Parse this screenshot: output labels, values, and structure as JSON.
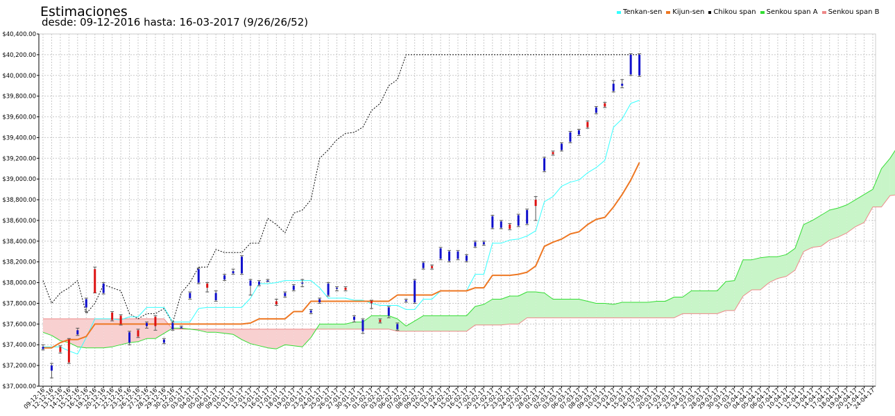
{
  "chart_data": {
    "type": "ichimoku_candlestick",
    "title": "Estimaciones",
    "subtitle": "desde: 09-12-2016 hasta: 16-03-2017 (9/26/26/52)",
    "ylim": [
      37000,
      40400
    ],
    "y_ticks": [
      37000,
      37200,
      37400,
      37600,
      37800,
      38000,
      38200,
      38400,
      38600,
      38800,
      39000,
      39200,
      39400,
      39600,
      39800,
      40000,
      40200,
      40400
    ],
    "y_tick_labels": [
      "$37,000.00",
      "$37,200.00",
      "$37,400.00",
      "$37,600.00",
      "$37,800.00",
      "$38,000.00",
      "$38,200.00",
      "$38,400.00",
      "$38,600.00",
      "$38,800.00",
      "$39,000.00",
      "$39,200.00",
      "$39,400.00",
      "$39,600.00",
      "$39,800.00",
      "$40,000.00",
      "$40,200.00",
      "$40,400.00"
    ],
    "grid": true,
    "legend_position": "top-right",
    "colors": {
      "tenkan": "#33ffff",
      "kijun": "#ee7722",
      "chikou": "#000000",
      "senkou_a": "#33dd33",
      "senkou_b": "#ee8888",
      "cloud_bull": "#c8f5c8",
      "cloud_bear": "#f8d0d0",
      "candle_up": "#1111cc",
      "candle_down": "#dd1111",
      "wick": "#555555"
    },
    "legend": [
      {
        "key": "tenkan",
        "label": "Tenkan-sen"
      },
      {
        "key": "kijun",
        "label": "Kijun-sen"
      },
      {
        "key": "chikou",
        "label": "Chikou span"
      },
      {
        "key": "senkou_a",
        "label": "Senkou span A"
      },
      {
        "key": "senkou_b",
        "label": "Senkou span B"
      }
    ],
    "dates": [
      "09-12-16",
      "12-12-16",
      "13-12-16",
      "14-12-16",
      "15-12-16",
      "16-12-16",
      "19-12-16",
      "20-12-16",
      "21-12-16",
      "22-12-16",
      "23-12-16",
      "26-12-16",
      "27-12-16",
      "28-12-16",
      "29-12-16",
      "30-12-16",
      "02-01-17",
      "03-01-17",
      "04-01-17",
      "05-01-17",
      "06-01-17",
      "09-01-17",
      "10-01-17",
      "11-01-17",
      "12-01-17",
      "13-01-17",
      "16-01-17",
      "17-01-17",
      "18-01-17",
      "19-01-17",
      "20-01-17",
      "23-01-17",
      "24-01-17",
      "25-01-17",
      "26-01-17",
      "27-01-17",
      "30-01-17",
      "31-01-17",
      "01-02-17",
      "02-02-17",
      "03-02-17",
      "06-02-17",
      "07-02-17",
      "08-02-17",
      "09-02-17",
      "10-02-17",
      "13-02-17",
      "14-02-17",
      "15-02-17",
      "16-02-17",
      "17-02-17",
      "20-02-17",
      "21-02-17",
      "22-02-17",
      "23-02-17",
      "24-02-17",
      "27-02-17",
      "28-02-17",
      "01-03-17",
      "02-03-17",
      "03-03-17",
      "06-03-17",
      "07-03-17",
      "08-03-17",
      "09-03-17",
      "10-03-17",
      "13-03-17",
      "14-03-17",
      "15-03-17",
      "16-03-17",
      "17-03-17",
      "20-03-17",
      "21-03-17",
      "22-03-17",
      "23-03-17",
      "24-03-17",
      "27-03-17",
      "28-03-17",
      "29-03-17",
      "30-03-17",
      "31-03-17",
      "03-04-17",
      "04-04-17",
      "05-04-17",
      "06-04-17",
      "07-04-17",
      "10-04-17",
      "11-04-17",
      "12-04-17",
      "13-04-17",
      "14-04-17",
      "17-04-17",
      "18-04-17",
      "19-04-17",
      "20-04-17",
      "21-04-17",
      "24-04-17"
    ],
    "candles": [
      {
        "o": 37360,
        "c": 37380,
        "h": 37400,
        "l": 37350
      },
      {
        "o": 37150,
        "c": 37200,
        "h": 37220,
        "l": 37080
      },
      {
        "o": 37380,
        "c": 37330,
        "h": 37390,
        "l": 37320
      },
      {
        "o": 37450,
        "c": 37230,
        "h": 37460,
        "l": 37220
      },
      {
        "o": 37500,
        "c": 37540,
        "h": 37560,
        "l": 37490
      },
      {
        "o": 37760,
        "c": 37840,
        "h": 37850,
        "l": 37720
      },
      {
        "o": 38130,
        "c": 37900,
        "h": 38150,
        "l": 37900
      },
      {
        "o": 37900,
        "c": 37990,
        "h": 38000,
        "l": 37890
      },
      {
        "o": 37710,
        "c": 37640,
        "h": 37720,
        "l": 37630
      },
      {
        "o": 37680,
        "c": 37600,
        "h": 37690,
        "l": 37590
      },
      {
        "o": 37420,
        "c": 37520,
        "h": 37530,
        "l": 37400
      },
      {
        "o": 37540,
        "c": 37480,
        "h": 37550,
        "l": 37470
      },
      {
        "o": 37580,
        "c": 37610,
        "h": 37620,
        "l": 37560
      },
      {
        "o": 37670,
        "c": 37580,
        "h": 37680,
        "l": 37540
      },
      {
        "o": 37420,
        "c": 37450,
        "h": 37460,
        "l": 37410
      },
      {
        "o": 37550,
        "c": 37610,
        "h": 37620,
        "l": 37540
      },
      {
        "o": 37570,
        "c": 37570,
        "h": 37580,
        "l": 37560
      },
      {
        "o": 37850,
        "c": 37900,
        "h": 37910,
        "l": 37840
      },
      {
        "o": 38000,
        "c": 38130,
        "h": 38140,
        "l": 37990
      },
      {
        "o": 37990,
        "c": 37950,
        "h": 38000,
        "l": 37910
      },
      {
        "o": 37830,
        "c": 37900,
        "h": 37920,
        "l": 37820
      },
      {
        "o": 38030,
        "c": 38070,
        "h": 38080,
        "l": 38020
      },
      {
        "o": 38090,
        "c": 38110,
        "h": 38130,
        "l": 38080
      },
      {
        "o": 38090,
        "c": 38250,
        "h": 38260,
        "l": 38080
      },
      {
        "o": 37970,
        "c": 38020,
        "h": 38030,
        "l": 37880
      },
      {
        "o": 37980,
        "c": 38010,
        "h": 38020,
        "l": 37970
      },
      {
        "o": 38020,
        "c": 38020,
        "h": 38030,
        "l": 38010
      },
      {
        "o": 37820,
        "c": 37790,
        "h": 37840,
        "l": 37780
      },
      {
        "o": 37870,
        "c": 37900,
        "h": 37910,
        "l": 37860
      },
      {
        "o": 37930,
        "c": 37970,
        "h": 37980,
        "l": 37920
      },
      {
        "o": 37990,
        "c": 38000,
        "h": 38030,
        "l": 37960
      },
      {
        "o": 37710,
        "c": 37730,
        "h": 37740,
        "l": 37700
      },
      {
        "o": 37810,
        "c": 37840,
        "h": 37850,
        "l": 37800
      },
      {
        "o": 37880,
        "c": 37990,
        "h": 38000,
        "l": 37870
      },
      {
        "o": 37940,
        "c": 37950,
        "h": 37960,
        "l": 37920
      },
      {
        "o": 37950,
        "c": 37930,
        "h": 37960,
        "l": 37920
      },
      {
        "o": 37640,
        "c": 37670,
        "h": 37680,
        "l": 37620
      },
      {
        "o": 37530,
        "c": 37640,
        "h": 37650,
        "l": 37510
      },
      {
        "o": 37820,
        "c": 37800,
        "h": 37830,
        "l": 37750
      },
      {
        "o": 37640,
        "c": 37620,
        "h": 37650,
        "l": 37610
      },
      {
        "o": 37680,
        "c": 37760,
        "h": 37770,
        "l": 37660
      },
      {
        "o": 37550,
        "c": 37600,
        "h": 37610,
        "l": 37540
      },
      {
        "o": 37820,
        "c": 37830,
        "h": 37840,
        "l": 37810
      },
      {
        "o": 37810,
        "c": 38020,
        "h": 38030,
        "l": 37800
      },
      {
        "o": 38140,
        "c": 38190,
        "h": 38200,
        "l": 38130
      },
      {
        "o": 38160,
        "c": 38140,
        "h": 38170,
        "l": 38130
      },
      {
        "o": 38230,
        "c": 38330,
        "h": 38340,
        "l": 38220
      },
      {
        "o": 38210,
        "c": 38300,
        "h": 38310,
        "l": 38200
      },
      {
        "o": 38230,
        "c": 38300,
        "h": 38310,
        "l": 38220
      },
      {
        "o": 38210,
        "c": 38260,
        "h": 38270,
        "l": 38200
      },
      {
        "o": 38350,
        "c": 38390,
        "h": 38400,
        "l": 38340
      },
      {
        "o": 38370,
        "c": 38390,
        "h": 38400,
        "l": 38360
      },
      {
        "o": 38530,
        "c": 38640,
        "h": 38650,
        "l": 38520
      },
      {
        "o": 38530,
        "c": 38590,
        "h": 38600,
        "l": 38520
      },
      {
        "o": 38560,
        "c": 38520,
        "h": 38570,
        "l": 38510
      },
      {
        "o": 38550,
        "c": 38650,
        "h": 38660,
        "l": 38540
      },
      {
        "o": 38570,
        "c": 38700,
        "h": 38710,
        "l": 38560
      },
      {
        "o": 38800,
        "c": 38740,
        "h": 38830,
        "l": 38600
      },
      {
        "o": 39080,
        "c": 39200,
        "h": 39210,
        "l": 39070
      },
      {
        "o": 39260,
        "c": 39240,
        "h": 39270,
        "l": 39230
      },
      {
        "o": 39280,
        "c": 39340,
        "h": 39350,
        "l": 39270
      },
      {
        "o": 39360,
        "c": 39450,
        "h": 39460,
        "l": 39350
      },
      {
        "o": 39430,
        "c": 39470,
        "h": 39480,
        "l": 39420
      },
      {
        "o": 39550,
        "c": 39500,
        "h": 39560,
        "l": 39490
      },
      {
        "o": 39640,
        "c": 39690,
        "h": 39700,
        "l": 39630
      },
      {
        "o": 39730,
        "c": 39700,
        "h": 39740,
        "l": 39690
      },
      {
        "o": 39850,
        "c": 39920,
        "h": 39950,
        "l": 39840
      },
      {
        "o": 39900,
        "c": 39920,
        "h": 39960,
        "l": 39880
      },
      {
        "o": 40010,
        "c": 40200,
        "h": 40210,
        "l": 40000
      },
      {
        "o": 40000,
        "c": 40200,
        "h": 40210,
        "l": 39990
      }
    ],
    "tenkan": [
      37380,
      37380,
      37380,
      37340,
      37310,
      37470,
      37650,
      37650,
      37650,
      37640,
      37670,
      37670,
      37760,
      37760,
      37760,
      37620,
      37620,
      37620,
      37750,
      37760,
      37760,
      37760,
      37760,
      37760,
      37850,
      37990,
      37990,
      38000,
      38020,
      38020,
      38020,
      38020,
      37950,
      37850,
      37850,
      37850,
      37830,
      37830,
      37800,
      37780,
      37780,
      37780,
      37740,
      37740,
      37840,
      37840,
      37920,
      37920,
      37920,
      37920,
      38080,
      38080,
      38380,
      38380,
      38410,
      38420,
      38450,
      38500,
      38780,
      38830,
      38930,
      38970,
      38990,
      39060,
      39110,
      39180,
      39500,
      39580,
      39730,
      39760
    ],
    "kijun": [
      37370,
      37370,
      37420,
      37450,
      37450,
      37480,
      37600,
      37600,
      37600,
      37600,
      37600,
      37600,
      37600,
      37600,
      37600,
      37600,
      37600,
      37600,
      37600,
      37600,
      37600,
      37600,
      37600,
      37600,
      37610,
      37650,
      37650,
      37650,
      37650,
      37720,
      37720,
      37820,
      37820,
      37820,
      37820,
      37820,
      37820,
      37820,
      37820,
      37820,
      37820,
      37880,
      37880,
      37880,
      37880,
      37880,
      37920,
      37920,
      37920,
      37920,
      37950,
      37950,
      38070,
      38070,
      38070,
      38080,
      38100,
      38160,
      38350,
      38390,
      38420,
      38470,
      38490,
      38560,
      38610,
      38630,
      38730,
      38850,
      38990,
      39160
    ],
    "chikou": [
      38020,
      37800,
      37900,
      37950,
      38020,
      37700,
      37800,
      37980,
      37950,
      37920,
      37700,
      37650,
      37700,
      37700,
      37750,
      37610,
      37900,
      38000,
      38150,
      38150,
      38320,
      38290,
      38290,
      38290,
      38380,
      38380,
      38620,
      38560,
      38480,
      38670,
      38700,
      38800,
      39200,
      39280,
      39380,
      39440,
      39450,
      39500,
      39660,
      39730,
      39900,
      39960,
      40200,
      40200,
      40200,
      40200,
      40200,
      40200,
      40200,
      40200,
      40200,
      40200,
      40200,
      40200,
      40200,
      40200,
      40200,
      40200,
      40200,
      40200,
      40200,
      40200,
      40200,
      40200,
      40200,
      40200,
      40200,
      40200,
      40200,
      40200
    ],
    "senkou_a": [
      37520,
      37490,
      37440,
      37420,
      37380,
      37370,
      37370,
      37370,
      37380,
      37400,
      37420,
      37430,
      37460,
      37460,
      37510,
      37560,
      37560,
      37550,
      37540,
      37520,
      37520,
      37510,
      37500,
      37450,
      37410,
      37390,
      37370,
      37360,
      37400,
      37390,
      37380,
      37470,
      37600,
      37600,
      37600,
      37600,
      37620,
      37620,
      37680,
      37680,
      37680,
      37650,
      37580,
      37630,
      37680,
      37680,
      37680,
      37680,
      37680,
      37680,
      37770,
      37790,
      37840,
      37840,
      37870,
      37870,
      37910,
      37910,
      37900,
      37840,
      37840,
      37840,
      37840,
      37820,
      37800,
      37800,
      37790,
      37810,
      37810,
      37810,
      37810,
      37820,
      37820,
      37860,
      37860,
      37920,
      37920,
      37920,
      37920,
      38010,
      38020,
      38220,
      38220,
      38240,
      38250,
      38250,
      38270,
      38330,
      38560,
      38600,
      38650,
      38700,
      38720,
      38750,
      38800,
      38850,
      38900,
      39100,
      39200,
      39330,
      39450
    ],
    "senkou_b": [
      37650,
      37650,
      37650,
      37650,
      37650,
      37650,
      37650,
      37650,
      37650,
      37650,
      37650,
      37650,
      37650,
      37650,
      37650,
      37550,
      37550,
      37550,
      37550,
      37550,
      37550,
      37550,
      37550,
      37550,
      37550,
      37550,
      37550,
      37550,
      37550,
      37550,
      37550,
      37550,
      37550,
      37550,
      37550,
      37550,
      37550,
      37550,
      37550,
      37550,
      37550,
      37530,
      37530,
      37530,
      37530,
      37530,
      37530,
      37530,
      37530,
      37530,
      37590,
      37590,
      37590,
      37590,
      37600,
      37600,
      37660,
      37660,
      37660,
      37660,
      37660,
      37660,
      37660,
      37660,
      37660,
      37660,
      37660,
      37660,
      37660,
      37660,
      37660,
      37660,
      37660,
      37660,
      37700,
      37700,
      37700,
      37700,
      37700,
      37730,
      37730,
      37870,
      37930,
      37930,
      38000,
      38040,
      38060,
      38120,
      38300,
      38340,
      38350,
      38410,
      38440,
      38480,
      38540,
      38580,
      38730,
      38730,
      38840,
      38850,
      38850
    ]
  }
}
